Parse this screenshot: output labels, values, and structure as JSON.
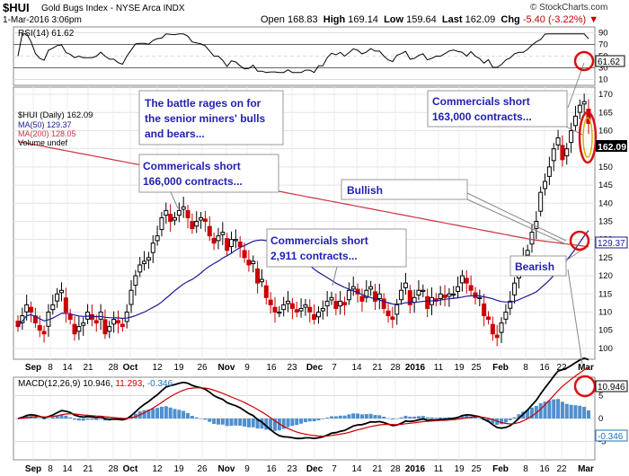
{
  "header": {
    "symbol": "$HUI",
    "name": "Gold Bugs Index - NYSE Arca INDX",
    "date": "1-Mar-2016 3:06pm",
    "brand": "© StockCharts.com",
    "open_label": "Open",
    "open": "168.83",
    "high_label": "High",
    "high": "169.14",
    "low_label": "Low",
    "low": "159.64",
    "last_label": "Last",
    "last": "162.09",
    "chg_label": "Chg",
    "chg": "-5.40 (-3.22%)",
    "chg_arrow": "▼"
  },
  "colors": {
    "up": "#000000",
    "down": "#cc0000",
    "ma50": "#1a1a99",
    "ma200": "#cc3344",
    "annotation": "#1f1fb3",
    "circle": "#d81010",
    "rsi": "#000000",
    "macd_hist": "#4f8fcf"
  },
  "legend": {
    "line1": "$HUI (Daily) 162.09",
    "line2": "MA(50) 129.37",
    "line3": "MA(200) 128.05",
    "line4": "Volume undef"
  },
  "rsi_panel": {
    "label": "RSI(14) 61.62",
    "value_tag": "61.62",
    "ticks": [
      "90",
      "70",
      "50",
      "30",
      "10"
    ]
  },
  "macd_panel": {
    "label_prefix": "MACD(12,26,9)",
    "macd": "10.946",
    "signal": "11.293",
    "hist": "-0.346",
    "value_tag": "10.946",
    "hist_tag": "-0.346",
    "ticks": [
      "5",
      "0",
      "-5"
    ]
  },
  "price_axis": {
    "ticks": [
      "170",
      "165",
      "160",
      "155",
      "150",
      "145",
      "140",
      "135",
      "130",
      "125",
      "120",
      "115",
      "110",
      "105",
      "100"
    ],
    "last_tag": "162.09",
    "ma_tag": "129.37"
  },
  "x_axis": {
    "labels": [
      "Sep",
      "8",
      "14",
      "21",
      "28",
      "Oct",
      "12",
      "19",
      "26",
      "Nov",
      "9",
      "16",
      "23",
      "Dec",
      "7",
      "14",
      "21",
      "28",
      "2016",
      "11",
      "19",
      "25",
      "Feb",
      "8",
      "16",
      "22",
      "Mar"
    ]
  },
  "annotations": {
    "a1": "The battle rages on for the senior miners' bulls and bears...",
    "a2": "Commericals short 166,000 contracts...",
    "a3": "Commercials short 2,911 contracts...",
    "a4": "Commercials short 163,000 contracts...",
    "a5": "Bullish",
    "a6": "Bearish"
  },
  "chart_data": {
    "type": "candlestick",
    "title": "$HUI Gold Bugs Index - NYSE Arca INDX",
    "ylim": [
      97,
      172
    ],
    "rsi_ylim": [
      0,
      100
    ],
    "macd_ylim": [
      -9,
      9
    ],
    "close": [
      106,
      109,
      112,
      110,
      107,
      105,
      104,
      110,
      112,
      115,
      116,
      110,
      108,
      104,
      106,
      107,
      110,
      108,
      107,
      110,
      104,
      106,
      108,
      107,
      106,
      110,
      116,
      120,
      123,
      124,
      125,
      129,
      131,
      136,
      138,
      135,
      136,
      138,
      139,
      136,
      133,
      135,
      136,
      135,
      131,
      129,
      131,
      132,
      127,
      130,
      130,
      128,
      125,
      123,
      124,
      118,
      119,
      114,
      112,
      110,
      110,
      112,
      113,
      111,
      110,
      111,
      112,
      110,
      108,
      110,
      111,
      113,
      114,
      111,
      113,
      112,
      116,
      117,
      115,
      113,
      116,
      117,
      113,
      115,
      111,
      109,
      108,
      112,
      116,
      118,
      112,
      114,
      116,
      116,
      111,
      114,
      113,
      115,
      114,
      115,
      115,
      117,
      120,
      118,
      116,
      114,
      114,
      109,
      108,
      104,
      103,
      107,
      110,
      113,
      118,
      122,
      125,
      127,
      132,
      135,
      143,
      146,
      150,
      155,
      158,
      152,
      155,
      160,
      164,
      167,
      168,
      162
    ]
  }
}
